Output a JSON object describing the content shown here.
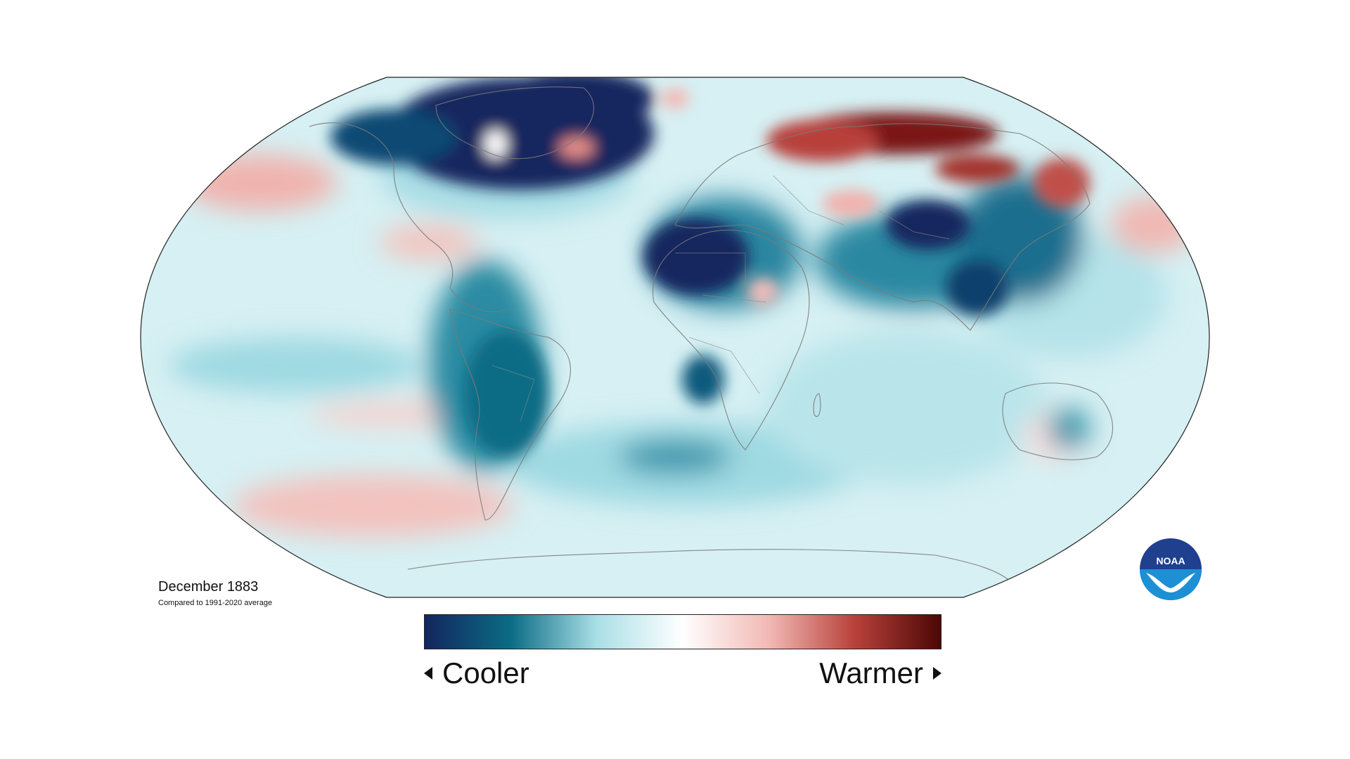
{
  "map": {
    "title": "December 1883",
    "subtitle": "Compared to 1991-2020 average",
    "projection": "Robinson",
    "variable": "surface temperature anomaly",
    "colors": {
      "cold_max": "#13265e",
      "cold_mid": "#0b6c85",
      "cold_light": "#a9dfe6",
      "neutral": "#ffffff",
      "warm_light": "#f2b9b5",
      "warm_mid": "#b8413a",
      "warm_max": "#4d0706"
    }
  },
  "legend": {
    "cooler_label": "Cooler",
    "warmer_label": "Warmer",
    "gradient": [
      "#13265e",
      "#0b6c85",
      "#a9dfe6",
      "#ffffff",
      "#f2b9b5",
      "#b8413a",
      "#4d0706"
    ]
  },
  "logo": {
    "text": "NOAA",
    "icon": "noaa-logo-icon"
  }
}
